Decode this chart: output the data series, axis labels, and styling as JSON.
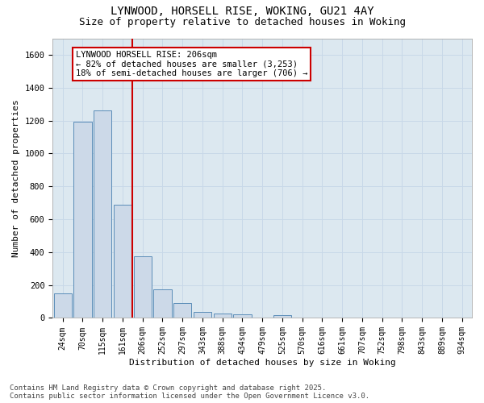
{
  "title_line1": "LYNWOOD, HORSELL RISE, WOKING, GU21 4AY",
  "title_line2": "Size of property relative to detached houses in Woking",
  "xlabel": "Distribution of detached houses by size in Woking",
  "ylabel": "Number of detached properties",
  "categories": [
    "24sqm",
    "70sqm",
    "115sqm",
    "161sqm",
    "206sqm",
    "252sqm",
    "297sqm",
    "343sqm",
    "388sqm",
    "434sqm",
    "479sqm",
    "525sqm",
    "570sqm",
    "616sqm",
    "661sqm",
    "707sqm",
    "752sqm",
    "798sqm",
    "843sqm",
    "889sqm",
    "934sqm"
  ],
  "values": [
    150,
    1195,
    1260,
    690,
    375,
    175,
    90,
    35,
    25,
    20,
    0,
    15,
    0,
    0,
    0,
    0,
    0,
    0,
    0,
    0,
    0
  ],
  "bar_color": "#ccd9e8",
  "bar_edge_color": "#5b8db8",
  "vline_color": "#cc0000",
  "annotation_text": "LYNWOOD HORSELL RISE: 206sqm\n← 82% of detached houses are smaller (3,253)\n18% of semi-detached houses are larger (706) →",
  "annotation_box_color": "#ffffff",
  "annotation_box_edge_color": "#cc0000",
  "ylim": [
    0,
    1700
  ],
  "yticks": [
    0,
    200,
    400,
    600,
    800,
    1000,
    1200,
    1400,
    1600
  ],
  "grid_color": "#c8d8e8",
  "background_color": "#dce8f0",
  "footer_line1": "Contains HM Land Registry data © Crown copyright and database right 2025.",
  "footer_line2": "Contains public sector information licensed under the Open Government Licence v3.0."
}
